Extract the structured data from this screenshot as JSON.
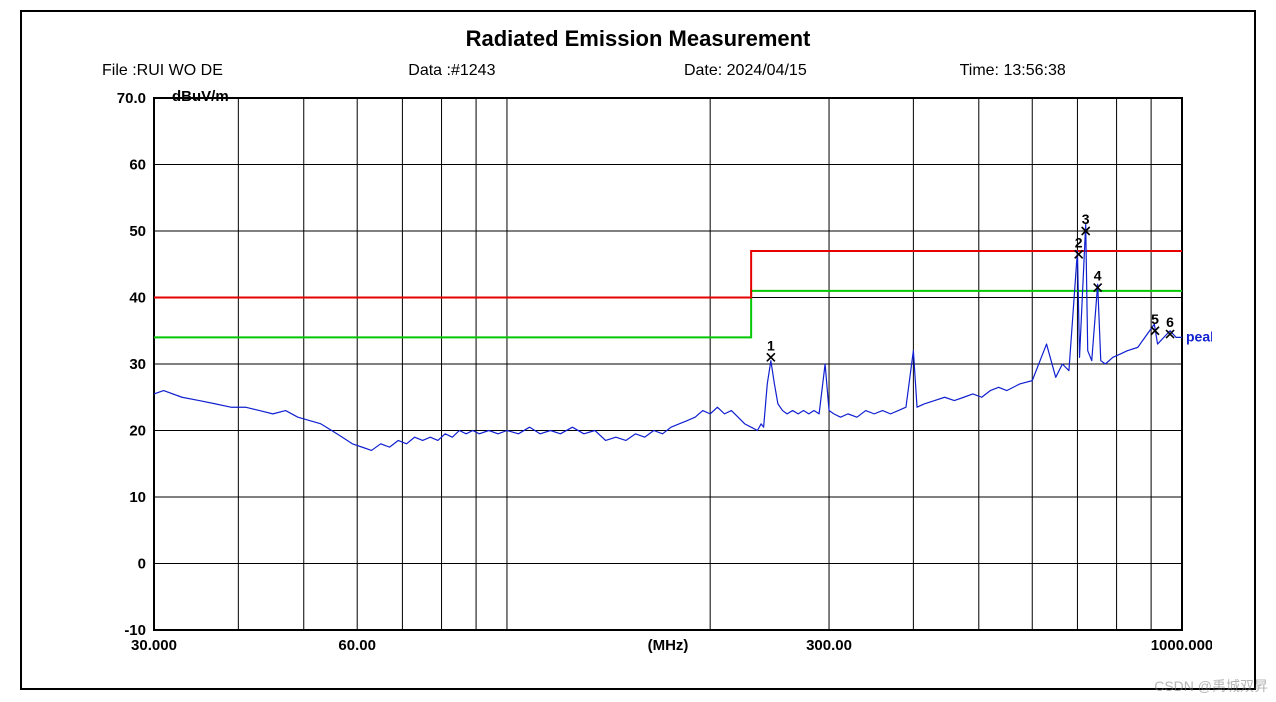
{
  "chart": {
    "type": "line",
    "title": "Radiated Emission Measurement",
    "meta": {
      "file_label": "File :",
      "file_value": "RUI WO DE",
      "data_label": "Data :",
      "data_value": "#1243",
      "date_label": "Date:",
      "date_value": "2024/04/15",
      "time_label": "Time:",
      "time_value": "13:56:38"
    },
    "y_unit": "dBuV/m",
    "x_unit": "(MHz)",
    "xscale": "log",
    "xlim": [
      30,
      1000
    ],
    "ylim": [
      -10,
      70
    ],
    "ytick_positions": [
      -10,
      0,
      10,
      20,
      30,
      40,
      50,
      60,
      70
    ],
    "ytick_labels": [
      "-10",
      "0",
      "10",
      "20",
      "30",
      "40",
      "50",
      "60",
      "70.0"
    ],
    "xtick_labels": [
      {
        "x": 30,
        "text": "30.000"
      },
      {
        "x": 60,
        "text": "60.00"
      },
      {
        "x": 300,
        "text": "300.00"
      },
      {
        "x": 1000,
        "text": "1000.000"
      }
    ],
    "x_gridlines_decade": [
      [
        30,
        40,
        50,
        60,
        70,
        80,
        90
      ],
      [
        100,
        200,
        300,
        400,
        500,
        600,
        700,
        800,
        900
      ],
      [
        1000
      ]
    ],
    "colors": {
      "background": "#ffffff",
      "grid": "#000000",
      "frame": "#000000",
      "limit_red": "#e60000",
      "limit_green": "#05c805",
      "trace_blue": "#1020d0",
      "text": "#000000"
    },
    "line_widths": {
      "grid": 1,
      "limit": 2,
      "trace": 1.2,
      "frame": 2
    },
    "limit_red": [
      {
        "x": 30,
        "y": 40
      },
      {
        "x": 230,
        "y": 40
      },
      {
        "x": 230,
        "y": 47
      },
      {
        "x": 1000,
        "y": 47
      }
    ],
    "limit_green": [
      {
        "x": 30,
        "y": 34
      },
      {
        "x": 230,
        "y": 34
      },
      {
        "x": 230,
        "y": 41
      },
      {
        "x": 1000,
        "y": 41
      }
    ],
    "trace_label": "peak",
    "trace_points": [
      [
        30,
        25.5
      ],
      [
        31,
        26
      ],
      [
        33,
        25
      ],
      [
        35,
        24.5
      ],
      [
        37,
        24
      ],
      [
        39,
        23.5
      ],
      [
        41,
        23.5
      ],
      [
        43,
        23
      ],
      [
        45,
        22.5
      ],
      [
        47,
        23
      ],
      [
        49,
        22
      ],
      [
        51,
        21.5
      ],
      [
        53,
        21
      ],
      [
        55,
        20
      ],
      [
        57,
        19
      ],
      [
        59,
        18
      ],
      [
        61,
        17.5
      ],
      [
        63,
        17
      ],
      [
        65,
        18
      ],
      [
        67,
        17.5
      ],
      [
        69,
        18.5
      ],
      [
        71,
        18
      ],
      [
        73,
        19
      ],
      [
        75,
        18.5
      ],
      [
        77,
        19
      ],
      [
        79,
        18.5
      ],
      [
        81,
        19.5
      ],
      [
        83,
        19
      ],
      [
        85,
        20
      ],
      [
        87,
        19.5
      ],
      [
        89,
        20
      ],
      [
        91,
        19.5
      ],
      [
        94,
        20
      ],
      [
        97,
        19.5
      ],
      [
        100,
        20
      ],
      [
        104,
        19.5
      ],
      [
        108,
        20.5
      ],
      [
        112,
        19.5
      ],
      [
        116,
        20
      ],
      [
        120,
        19.5
      ],
      [
        125,
        20.5
      ],
      [
        130,
        19.5
      ],
      [
        135,
        20
      ],
      [
        140,
        18.5
      ],
      [
        145,
        19
      ],
      [
        150,
        18.5
      ],
      [
        155,
        19.5
      ],
      [
        160,
        19
      ],
      [
        165,
        20
      ],
      [
        170,
        19.5
      ],
      [
        175,
        20.5
      ],
      [
        180,
        21
      ],
      [
        185,
        21.5
      ],
      [
        190,
        22
      ],
      [
        195,
        23
      ],
      [
        200,
        22.5
      ],
      [
        205,
        23.5
      ],
      [
        210,
        22.5
      ],
      [
        215,
        23
      ],
      [
        220,
        22
      ],
      [
        225,
        21
      ],
      [
        230,
        20.5
      ],
      [
        235,
        20
      ],
      [
        238,
        21
      ],
      [
        240,
        20.5
      ],
      [
        243,
        27
      ],
      [
        246,
        30.5
      ],
      [
        249,
        27
      ],
      [
        252,
        24
      ],
      [
        256,
        23
      ],
      [
        260,
        22.5
      ],
      [
        265,
        23
      ],
      [
        270,
        22.5
      ],
      [
        275,
        23
      ],
      [
        280,
        22.5
      ],
      [
        285,
        23
      ],
      [
        290,
        22.5
      ],
      [
        296,
        30
      ],
      [
        300,
        23
      ],
      [
        305,
        22.5
      ],
      [
        312,
        22
      ],
      [
        320,
        22.5
      ],
      [
        330,
        22
      ],
      [
        340,
        23
      ],
      [
        350,
        22.5
      ],
      [
        360,
        23
      ],
      [
        370,
        22.5
      ],
      [
        380,
        23
      ],
      [
        390,
        23.5
      ],
      [
        400,
        32
      ],
      [
        405,
        23.5
      ],
      [
        415,
        24
      ],
      [
        430,
        24.5
      ],
      [
        445,
        25
      ],
      [
        460,
        24.5
      ],
      [
        475,
        25
      ],
      [
        490,
        25.5
      ],
      [
        505,
        25
      ],
      [
        520,
        26
      ],
      [
        535,
        26.5
      ],
      [
        550,
        26
      ],
      [
        575,
        27
      ],
      [
        600,
        27.5
      ],
      [
        630,
        33
      ],
      [
        650,
        28
      ],
      [
        665,
        30
      ],
      [
        680,
        29
      ],
      [
        700,
        47
      ],
      [
        705,
        31
      ],
      [
        720,
        51
      ],
      [
        725,
        32
      ],
      [
        735,
        30.5
      ],
      [
        750,
        42
      ],
      [
        758,
        30.5
      ],
      [
        770,
        30
      ],
      [
        790,
        31
      ],
      [
        810,
        31.5
      ],
      [
        830,
        32
      ],
      [
        860,
        32.5
      ],
      [
        910,
        36
      ],
      [
        920,
        33
      ],
      [
        960,
        35
      ],
      [
        980,
        34
      ],
      [
        1000,
        34
      ]
    ],
    "markers": [
      {
        "n": "1",
        "x": 246,
        "y": 31
      },
      {
        "n": "2",
        "x": 703,
        "y": 46.5
      },
      {
        "n": "3",
        "x": 720,
        "y": 50
      },
      {
        "n": "4",
        "x": 750,
        "y": 41.5
      },
      {
        "n": "5",
        "x": 912,
        "y": 35
      },
      {
        "n": "6",
        "x": 960,
        "y": 34.5
      }
    ],
    "title_fontsize": 22,
    "label_fontsize": 15
  },
  "watermark": "CSDN @禹城双昇"
}
